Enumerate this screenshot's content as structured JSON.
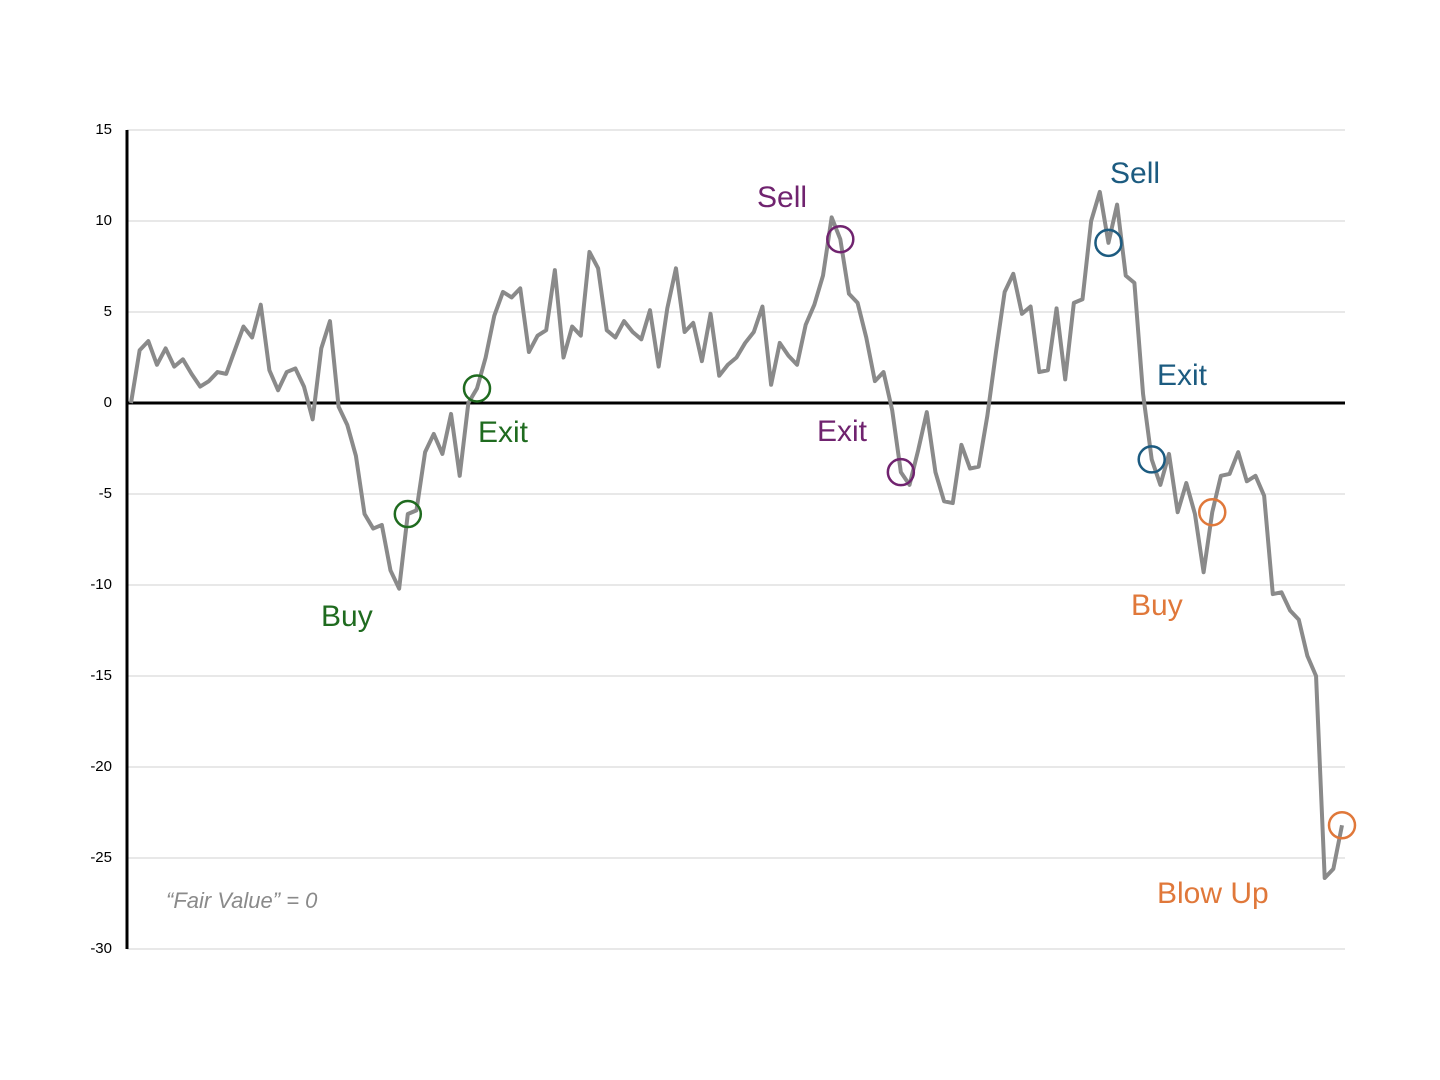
{
  "chart_data": {
    "type": "line",
    "note": "“Fair Value” = 0",
    "color": "#8a8a8a",
    "values": [
      0,
      2.9,
      3.4,
      2.1,
      3,
      2,
      2.4,
      1.6,
      0.9,
      1.2,
      1.7,
      1.6,
      2.9,
      4.2,
      3.6,
      5.4,
      1.8,
      0.7,
      1.7,
      1.9,
      0.9,
      -0.9,
      3,
      4.5,
      -0.2,
      -1.2,
      -2.9,
      -6.1,
      -6.9,
      -6.7,
      -9.2,
      -10.2,
      -6.1,
      -5.9,
      -2.7,
      -1.7,
      -2.8,
      -0.6,
      -4,
      0,
      0.8,
      2.5,
      4.8,
      6.1,
      5.8,
      6.3,
      2.8,
      3.7,
      4,
      7.3,
      2.5,
      4.2,
      3.7,
      8.3,
      7.4,
      4,
      3.6,
      4.5,
      3.9,
      3.5,
      5.1,
      2,
      5.2,
      7.4,
      3.9,
      4.4,
      2.3,
      4.9,
      1.5,
      2.1,
      2.5,
      3.3,
      3.9,
      5.3,
      1,
      3.3,
      2.6,
      2.1,
      4.3,
      5.4,
      7,
      10.2,
      9,
      6,
      5.5,
      3.6,
      1.2,
      1.7,
      -0.4,
      -3.8,
      -4.5,
      -2.6,
      -0.5,
      -3.8,
      -5.4,
      -5.5,
      -2.3,
      -3.6,
      -3.5,
      -0.7,
      2.8,
      6.1,
      7.1,
      4.9,
      5.3,
      1.7,
      1.8,
      5.2,
      1.3,
      5.5,
      5.7,
      10,
      11.6,
      8.8,
      10.9,
      7,
      6.6,
      0.5,
      -3.1,
      -4.5,
      -2.8,
      -6,
      -4.4,
      -6.1,
      -9.3,
      -6,
      -4,
      -3.9,
      -2.7,
      -4.3,
      -4,
      -5.1,
      -10.5,
      -10.4,
      -11.4,
      -11.9,
      -13.9,
      -15,
      -26.1,
      -25.6,
      -23.2
    ],
    "ylim": [
      -30,
      15
    ],
    "yticks": [
      -30,
      -25,
      -20,
      -15,
      -10,
      -5,
      0,
      5,
      10,
      15
    ],
    "grid": true,
    "annotations": [
      {
        "text": "Buy",
        "color": "#1f6b1f"
      },
      {
        "text": "Exit",
        "color": "#1f6b1f"
      },
      {
        "text": "Sell",
        "color": "#70236f"
      },
      {
        "text": "Exit",
        "color": "#70236f"
      },
      {
        "text": "Sell",
        "color": "#1c5b80"
      },
      {
        "text": "Exit",
        "color": "#1c5b80"
      },
      {
        "text": "Buy",
        "color": "#e0783a"
      },
      {
        "text": "Blow Up",
        "color": "#e0783a"
      }
    ]
  }
}
